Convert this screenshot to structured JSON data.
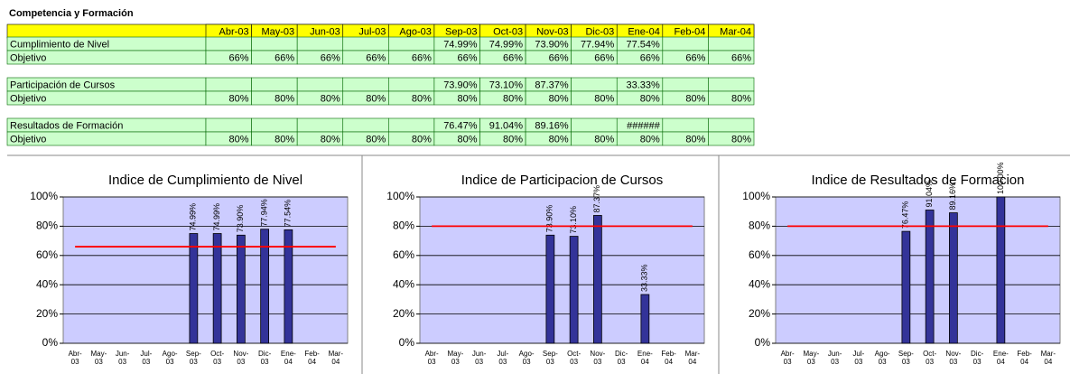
{
  "title": "Competencia y Formación",
  "table": {
    "header": [
      "Abr-03",
      "May-03",
      "Jun-03",
      "Jul-03",
      "Ago-03",
      "Sep-03",
      "Oct-03",
      "Nov-03",
      "Dic-03",
      "Ene-04",
      "Feb-04",
      "Mar-04"
    ],
    "groups": [
      [
        [
          "Cumplimiento de Nivel",
          null,
          null,
          null,
          null,
          null,
          "74.99%",
          "74.99%",
          "73.90%",
          "77.94%",
          "77.54%",
          null,
          null
        ],
        [
          "Objetivo",
          "66%",
          "66%",
          "66%",
          "66%",
          "66%",
          "66%",
          "66%",
          "66%",
          "66%",
          "66%",
          "66%",
          "66%"
        ]
      ],
      [
        [
          "Participación de Cursos",
          null,
          null,
          null,
          null,
          null,
          "73.90%",
          "73.10%",
          "87.37%",
          null,
          "33.33%",
          null,
          null
        ],
        [
          "Objetivo",
          "80%",
          "80%",
          "80%",
          "80%",
          "80%",
          "80%",
          "80%",
          "80%",
          "80%",
          "80%",
          "80%",
          "80%"
        ]
      ],
      [
        [
          "Resultados de Formación",
          null,
          null,
          null,
          null,
          null,
          "76.47%",
          "91.04%",
          "89.16%",
          null,
          "######",
          null,
          null
        ],
        [
          "Objetivo",
          "80%",
          "80%",
          "80%",
          "80%",
          "80%",
          "80%",
          "80%",
          "80%",
          "80%",
          "80%",
          "80%",
          "80%"
        ]
      ]
    ]
  },
  "chart_data": [
    {
      "type": "bar",
      "title": "Indice  de Cumplimiento de Nivel",
      "categories": [
        "Abr-03",
        "May-03",
        "Jun-03",
        "Jul-03",
        "Ago-03",
        "Sep-03",
        "Oct-03",
        "Nov-03",
        "Dic-03",
        "Ene-04",
        "Feb-04",
        "Mar-04"
      ],
      "series": [
        {
          "kind": "bar",
          "color": "#333399",
          "values": [
            null,
            null,
            null,
            null,
            null,
            74.99,
            74.99,
            73.9,
            77.94,
            77.54,
            null,
            null
          ],
          "value_labels": [
            null,
            null,
            null,
            null,
            null,
            "74.99%",
            "74.99%",
            "73.90%",
            "77.94%",
            "77.54%",
            null,
            null
          ]
        },
        {
          "kind": "line",
          "color": "#ff0000",
          "values": [
            66,
            66,
            66,
            66,
            66,
            66,
            66,
            66,
            66,
            66,
            66,
            66
          ]
        }
      ],
      "ylim": [
        0,
        100
      ],
      "yticks": [
        {
          "value": 0,
          "label": "0%"
        },
        {
          "value": 20,
          "label": "20%"
        },
        {
          "value": 40,
          "label": "40%"
        },
        {
          "value": 60,
          "label": "60%"
        },
        {
          "value": 80,
          "label": "80%"
        },
        {
          "value": 100,
          "label": "100%"
        }
      ],
      "grid": true
    },
    {
      "type": "bar",
      "title": "Indice de Participacion de Cursos",
      "categories": [
        "Abr-03",
        "May-03",
        "Jun-03",
        "Jul-03",
        "Ago-03",
        "Sep-03",
        "Oct-03",
        "Nov-03",
        "Dic-03",
        "Ene-04",
        "Feb-04",
        "Mar-04"
      ],
      "series": [
        {
          "kind": "bar",
          "color": "#333399",
          "values": [
            null,
            null,
            null,
            null,
            null,
            73.9,
            73.1,
            87.37,
            null,
            33.33,
            null,
            null
          ],
          "value_labels": [
            null,
            null,
            null,
            null,
            null,
            "73.90%",
            "73.10%",
            "87.37%",
            null,
            "33.33%",
            null,
            null
          ]
        },
        {
          "kind": "line",
          "color": "#ff0000",
          "values": [
            80,
            80,
            80,
            80,
            80,
            80,
            80,
            80,
            80,
            80,
            80,
            80
          ]
        }
      ],
      "ylim": [
        0,
        100
      ],
      "yticks": [
        {
          "value": 0,
          "label": "0%"
        },
        {
          "value": 20,
          "label": "20%"
        },
        {
          "value": 40,
          "label": "40%"
        },
        {
          "value": 60,
          "label": "60%"
        },
        {
          "value": 80,
          "label": "80%"
        },
        {
          "value": 100,
          "label": "100%"
        }
      ],
      "grid": true
    },
    {
      "type": "bar",
      "title": "Indice de Resultados de Formacion",
      "categories": [
        "Abr-03",
        "May-03",
        "Jun-03",
        "Jul-03",
        "Ago-03",
        "Sep-03",
        "Oct-03",
        "Nov-03",
        "Dic-03",
        "Ene-04",
        "Feb-04",
        "Mar-04"
      ],
      "series": [
        {
          "kind": "bar",
          "color": "#333399",
          "values": [
            null,
            null,
            null,
            null,
            null,
            76.47,
            91.04,
            89.16,
            null,
            100,
            null,
            null
          ],
          "value_labels": [
            null,
            null,
            null,
            null,
            null,
            "76.47%",
            "91.04%",
            "89.16%",
            null,
            "100.00%",
            null,
            null
          ]
        },
        {
          "kind": "line",
          "color": "#ff0000",
          "values": [
            80,
            80,
            80,
            80,
            80,
            80,
            80,
            80,
            80,
            80,
            80,
            80
          ]
        }
      ],
      "ylim": [
        0,
        100
      ],
      "yticks": [
        {
          "value": 0,
          "label": "0%"
        },
        {
          "value": 20,
          "label": "20%"
        },
        {
          "value": 40,
          "label": "40%"
        },
        {
          "value": 60,
          "label": "60%"
        },
        {
          "value": 80,
          "label": "80%"
        },
        {
          "value": 100,
          "label": "100%"
        }
      ],
      "grid": true
    }
  ]
}
